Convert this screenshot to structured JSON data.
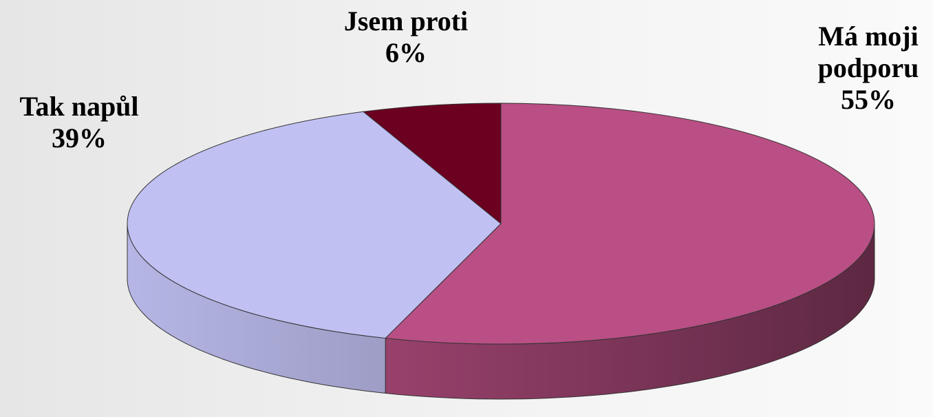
{
  "chart_data": {
    "type": "pie",
    "categories": [
      "Má moji podporu",
      "Tak napůl",
      "Jsem proti"
    ],
    "values": [
      55,
      39,
      6
    ],
    "value_labels": [
      "55%",
      "39%",
      "6%"
    ],
    "colors": [
      "#b94f84",
      "#c0c0f2",
      "#6b0020"
    ]
  }
}
